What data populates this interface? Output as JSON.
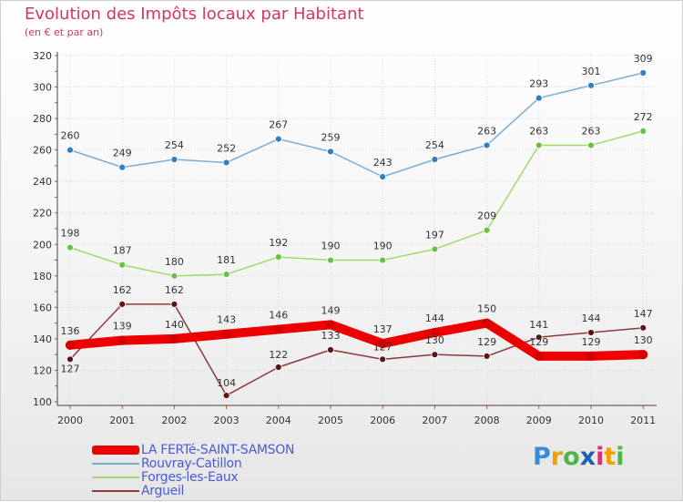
{
  "title": "Evolution des Impôts locaux par Habitant",
  "subtitle": "(en € et par an)",
  "logo": {
    "letters": [
      "P",
      "r",
      "o",
      "x",
      "i",
      "t",
      "i"
    ],
    "colors": [
      "#3b8bd4",
      "#f0a000",
      "#4cb648",
      "#1f5fb0",
      "#d6336c",
      "#f0a000",
      "#4cb648"
    ]
  },
  "chart_data": {
    "type": "line",
    "title": "Evolution des Impôts locaux par Habitant",
    "subtitle": "(en € et par an)",
    "xlabel": "",
    "ylabel": "",
    "categories": [
      "2000",
      "2001",
      "2002",
      "2003",
      "2004",
      "2005",
      "2006",
      "2007",
      "2008",
      "2009",
      "2010",
      "2011"
    ],
    "ylim": [
      100,
      320
    ],
    "yticks": [
      "100",
      "120",
      "140",
      "160",
      "180",
      "200",
      "220",
      "240",
      "260",
      "280",
      "300",
      "320"
    ],
    "grid": true,
    "legend_position": "bottom-left",
    "series": [
      {
        "name": "LA FERTé-SAINT-SAMSON",
        "values": [
          136,
          139,
          140,
          143,
          146,
          149,
          137,
          144,
          150,
          129,
          129,
          130
        ],
        "color": "#ee0000",
        "marker_color": "#d40000",
        "width": "thick"
      },
      {
        "name": "Rouvray-Catillon",
        "values": [
          260,
          249,
          254,
          252,
          267,
          259,
          243,
          254,
          263,
          293,
          301,
          309
        ],
        "color": "#7baed6",
        "marker_color": "#2f7fc1",
        "width": "thin"
      },
      {
        "name": "Forges-les-Eaux",
        "values": [
          198,
          187,
          180,
          181,
          192,
          190,
          190,
          197,
          209,
          263,
          263,
          272
        ],
        "color": "#a2d96a",
        "marker_color": "#6cc040",
        "width": "thin"
      },
      {
        "name": "Argueil",
        "values": [
          127,
          162,
          162,
          104,
          122,
          133,
          127,
          130,
          129,
          141,
          144,
          147
        ],
        "color": "#8a3a3a",
        "marker_color": "#5e1414",
        "width": "thin"
      }
    ]
  }
}
